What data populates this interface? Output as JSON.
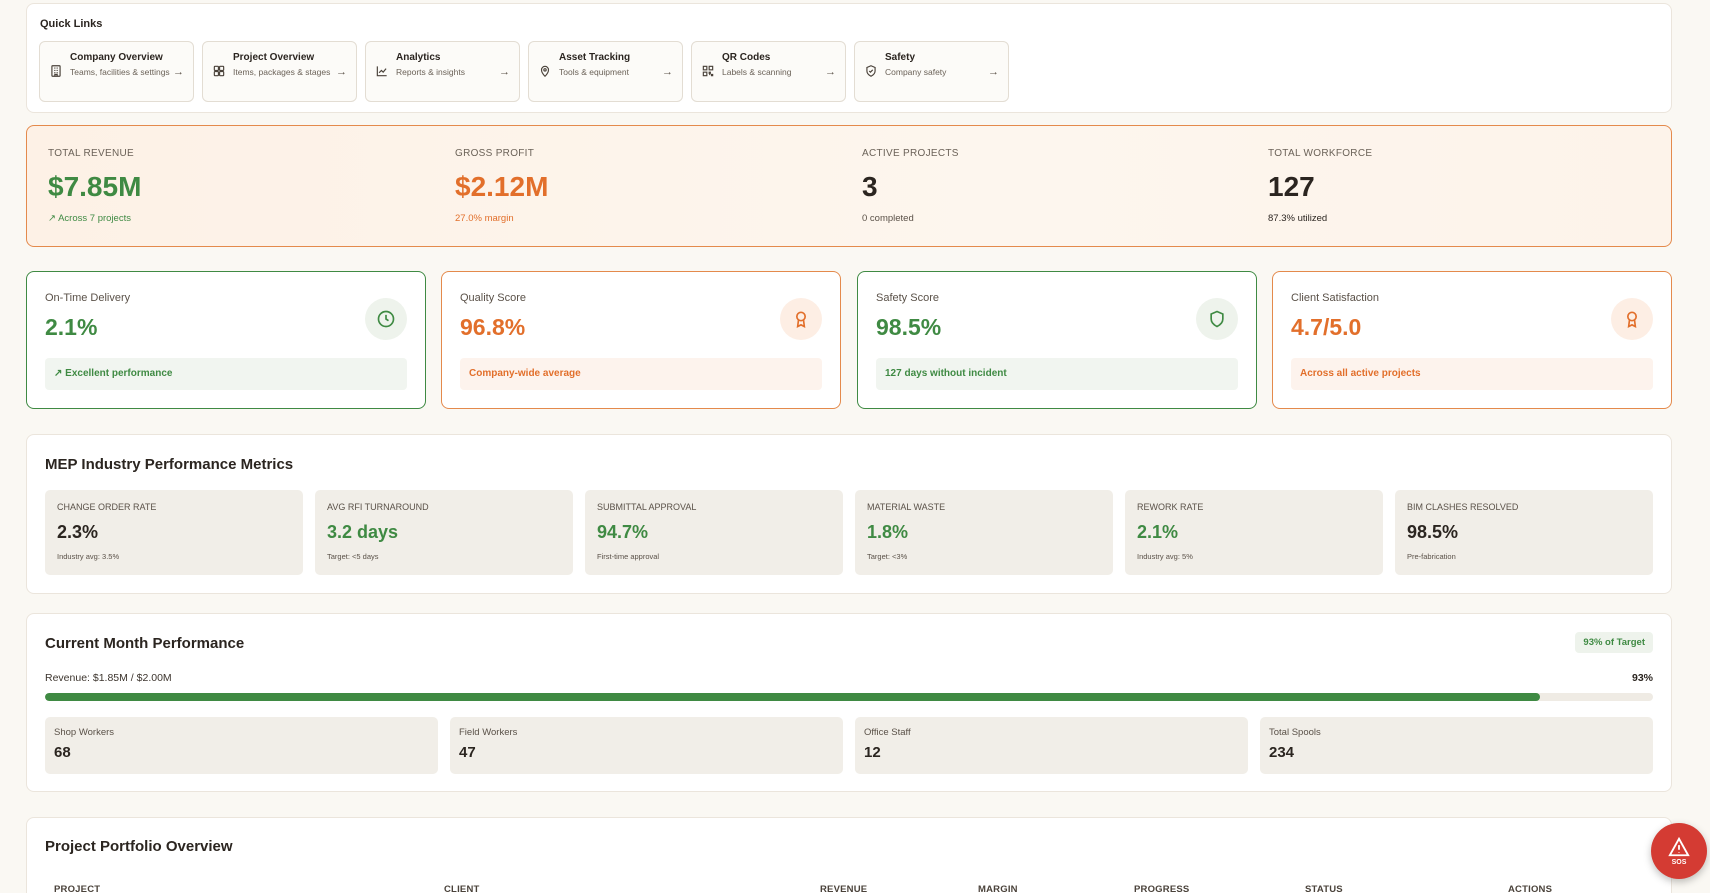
{
  "quick_links": {
    "title": "Quick Links",
    "items": [
      {
        "title": "Company Overview",
        "subtitle": "Teams, facilities & settings",
        "icon": "building-icon"
      },
      {
        "title": "Project Overview",
        "subtitle": "Items, packages & stages",
        "icon": "grid-icon"
      },
      {
        "title": "Analytics",
        "subtitle": "Reports & insights",
        "icon": "chart-line-icon"
      },
      {
        "title": "Asset Tracking",
        "subtitle": "Tools & equipment",
        "icon": "map-pin-icon"
      },
      {
        "title": "QR Codes",
        "subtitle": "Labels & scanning",
        "icon": "qr-code-icon"
      },
      {
        "title": "Safety",
        "subtitle": "Company safety",
        "icon": "shield-check-icon"
      }
    ]
  },
  "kpis": [
    {
      "label": "TOTAL REVENUE",
      "value": "$7.85M",
      "note": "Across 7 projects"
    },
    {
      "label": "GROSS PROFIT",
      "value": "$2.12M",
      "note": "27.0% margin"
    },
    {
      "label": "ACTIVE PROJECTS",
      "value": "3",
      "note": "0 completed"
    },
    {
      "label": "TOTAL WORKFORCE",
      "value": "127",
      "note": "87.3% utilized"
    }
  ],
  "scores": [
    {
      "label": "On-Time Delivery",
      "value": "2.1%",
      "note": "Excellent performance",
      "icon": "clock-icon"
    },
    {
      "label": "Quality Score",
      "value": "96.8%",
      "note": "Company-wide average",
      "icon": "award-icon"
    },
    {
      "label": "Safety Score",
      "value": "98.5%",
      "note": "127 days without incident",
      "icon": "shield-icon"
    },
    {
      "label": "Client Satisfaction",
      "value": "4.7/5.0",
      "note": "Across all active projects",
      "icon": "award-icon"
    }
  ],
  "mep": {
    "title": "MEP Industry Performance Metrics",
    "items": [
      {
        "label": "CHANGE ORDER RATE",
        "value": "2.3%",
        "note": "Industry avg: 3.5%"
      },
      {
        "label": "AVG RFI TURNAROUND",
        "value": "3.2 days",
        "note": "Target: <5 days"
      },
      {
        "label": "SUBMITTAL APPROVAL",
        "value": "94.7%",
        "note": "First-time approval"
      },
      {
        "label": "MATERIAL WASTE",
        "value": "1.8%",
        "note": "Target: <3%"
      },
      {
        "label": "REWORK RATE",
        "value": "2.1%",
        "note": "Industry avg: 5%"
      },
      {
        "label": "BIM CLASHES RESOLVED",
        "value": "98.5%",
        "note": "Pre-fabrication"
      }
    ]
  },
  "current_month": {
    "title": "Current Month Performance",
    "badge": "93% of Target",
    "revenue_text": "Revenue: $1.85M / $2.00M",
    "progress_label": "93%",
    "progress_fraction": 0.93,
    "items": [
      {
        "label": "Shop Workers",
        "value": "68"
      },
      {
        "label": "Field Workers",
        "value": "47"
      },
      {
        "label": "Office Staff",
        "value": "12"
      },
      {
        "label": "Total Spools",
        "value": "234"
      }
    ]
  },
  "portfolio": {
    "title": "Project Portfolio Overview",
    "columns": [
      "PROJECT",
      "CLIENT",
      "REVENUE",
      "MARGIN",
      "PROGRESS",
      "STATUS",
      "ACTIONS"
    ]
  },
  "sos": {
    "label": "SOS",
    "icon": "alert-triangle-icon"
  },
  "colors": {
    "green": "#3f8a43",
    "orange": "#e26f2b",
    "sos_red": "#d43b33",
    "background": "#faf8f3"
  }
}
